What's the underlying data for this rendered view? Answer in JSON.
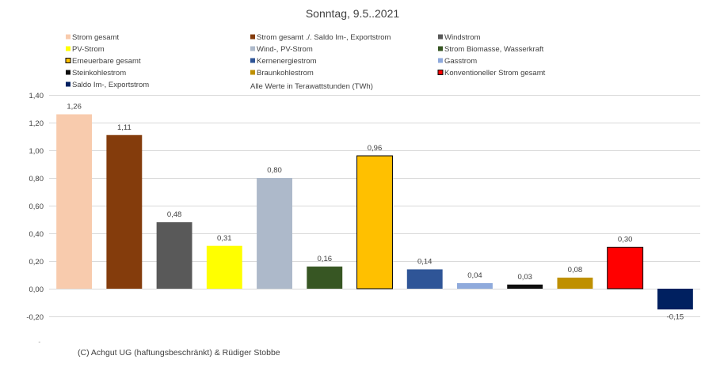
{
  "chart_data": {
    "type": "bar",
    "title": "Sonntag, 9.5..2021",
    "subtitle": "Alle Werte in Terawattstunden (TWh)",
    "categories": [
      "Strom gesamt",
      "Strom gesamt ./. Saldo Im-, Exportstrom",
      "Windstrom",
      "PV-Strom",
      "Wind-, PV-Strom",
      "Strom Biomasse, Wasserkraft",
      "Erneuerbare gesamt",
      "Kernenergiestrom",
      "Gasstrom",
      "Steinkohlestrom",
      "Braunkohlestrom",
      "Konventioneller Strom gesamt",
      "Saldo Im-, Exportstrom"
    ],
    "values": [
      1.26,
      1.11,
      0.48,
      0.31,
      0.8,
      0.16,
      0.96,
      0.14,
      0.04,
      0.03,
      0.08,
      0.3,
      -0.15
    ],
    "value_labels": [
      "1,26",
      "1,11",
      "0,48",
      "0,31",
      "0,80",
      "0,16",
      "0,96",
      "0,14",
      "0,04",
      "0,03",
      "0,08",
      "0,30",
      "-0,15"
    ],
    "colors": [
      "#f8cbad",
      "#843c0c",
      "#595959",
      "#ffff00",
      "#adb9ca",
      "#375623",
      "#ffc000",
      "#2f5597",
      "#8faadc",
      "#0d0d0d",
      "#bf9000",
      "#ff0000",
      "#002060"
    ],
    "outlined": [
      false,
      false,
      false,
      false,
      false,
      false,
      true,
      false,
      false,
      false,
      false,
      true,
      false
    ],
    "ylim": [
      -0.4,
      1.4
    ],
    "yticks": [
      -0.4,
      -0.2,
      0,
      0.2,
      0.4,
      0.6,
      0.8,
      1.0,
      1.2,
      1.4
    ],
    "ytick_labels": [
      "-0,",
      "-0,20",
      "0,00",
      "0,20",
      "0,40",
      "0,60",
      "0,80",
      "1,00",
      "1,20",
      "1,40"
    ],
    "grid": true,
    "legend_position": "top",
    "copyright": "(C) Achgut UG (haftungsbeschränkt) & Rüdiger Stobbe"
  }
}
